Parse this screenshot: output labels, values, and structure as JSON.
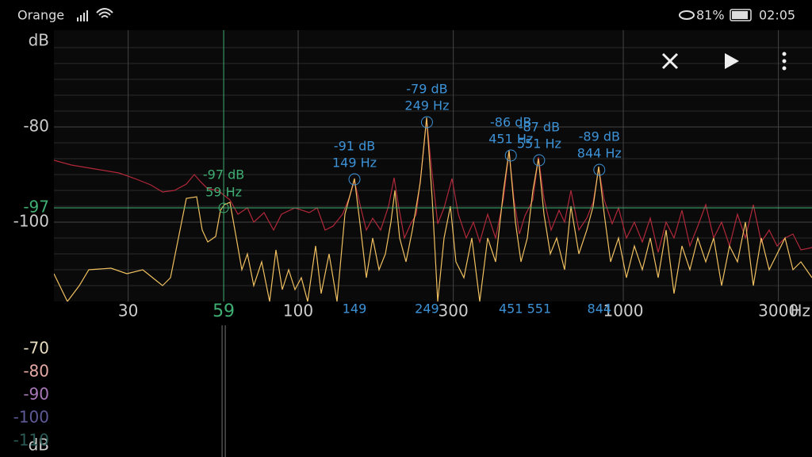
{
  "status_bar": {
    "carrier": "Orange",
    "battery": "81%",
    "time": "02:05"
  },
  "spectrum": {
    "y_unit": "dB",
    "x_unit": "Hz",
    "ylim": [
      -116,
      -60
    ],
    "yticks": [
      -80,
      -100
    ],
    "xlim": [
      18,
      3800
    ],
    "x_scale": "log",
    "xticks": [
      30,
      100,
      300,
      1000,
      3000
    ],
    "cursor": {
      "hz": 59,
      "db": -97,
      "db_label": "-97 dB",
      "hz_label": "59 Hz",
      "color": "#3fae72"
    },
    "peak_color": "#3d92d6",
    "peaks": [
      {
        "hz": 149,
        "db": -91,
        "db_label": "-91 dB",
        "hz_label": "149 Hz"
      },
      {
        "hz": 249,
        "db": -79,
        "db_label": "-79 dB",
        "hz_label": "249 Hz"
      },
      {
        "hz": 451,
        "db": -86,
        "db_label": "-86 dB",
        "hz_label": "451 Hz"
      },
      {
        "hz": 551,
        "db": -87,
        "db_label": "-87 dB",
        "hz_label": "551 Hz"
      },
      {
        "hz": 844,
        "db": -89,
        "db_label": "-89 dB",
        "hz_label": "844 Hz"
      }
    ]
  },
  "colorbar": {
    "unit": "dB",
    "ticks": [
      -70,
      -80,
      -90,
      -100,
      -110
    ],
    "colors": [
      "#e8dcc0",
      "#e6a9a6",
      "#a978b8",
      "#5e5a98",
      "#2a5a55"
    ]
  }
}
